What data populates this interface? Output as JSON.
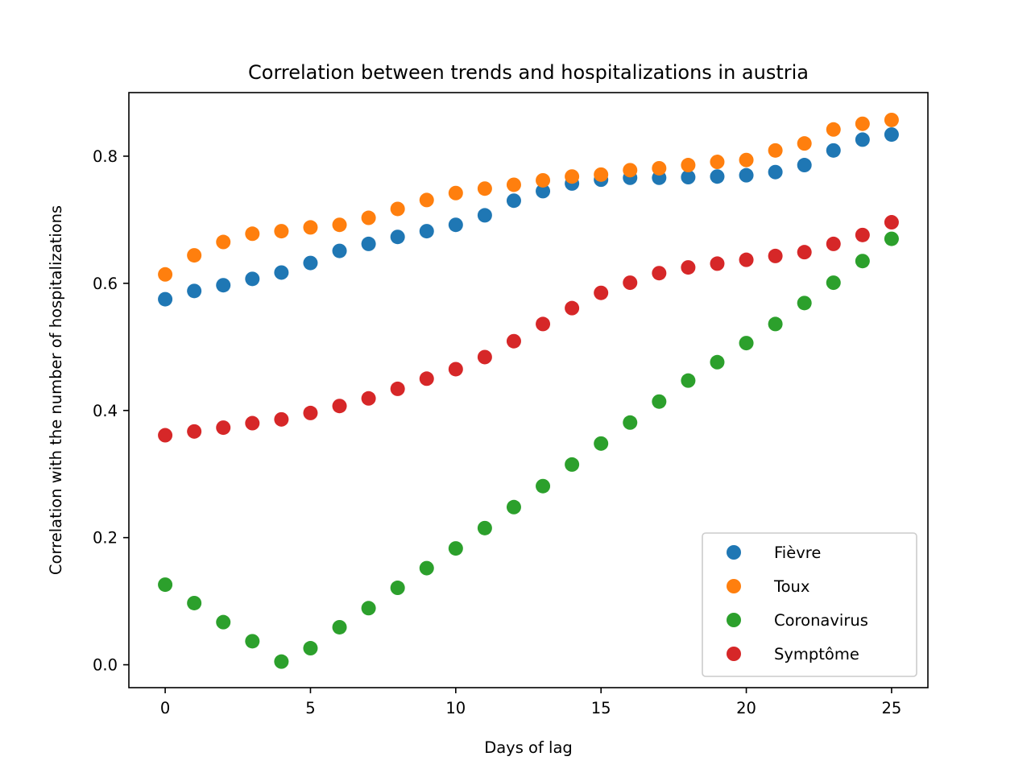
{
  "chart_data": {
    "type": "scatter",
    "title": "Correlation between trends and hospitalizations in austria",
    "xlabel": "Days of lag",
    "ylabel": "Correlation with the number of hospitalizations",
    "xlim": [
      -1.25,
      26.25
    ],
    "ylim": [
      -0.036,
      0.9
    ],
    "xticks": [
      0,
      5,
      10,
      15,
      20,
      25
    ],
    "xtick_labels": [
      "0",
      "5",
      "10",
      "15",
      "20",
      "25"
    ],
    "yticks": [
      0.0,
      0.2,
      0.4,
      0.6,
      0.8
    ],
    "ytick_labels": [
      "0.0",
      "0.2",
      "0.4",
      "0.6",
      "0.8"
    ],
    "grid": false,
    "legend_position": "lower-right",
    "x": [
      0,
      1,
      2,
      3,
      4,
      5,
      6,
      7,
      8,
      9,
      10,
      11,
      12,
      13,
      14,
      15,
      16,
      17,
      18,
      19,
      20,
      21,
      22,
      23,
      24,
      25
    ],
    "series": [
      {
        "name": "Fièvre",
        "color": "#1f77b4",
        "values": [
          0.575,
          0.588,
          0.597,
          0.607,
          0.617,
          0.632,
          0.651,
          0.662,
          0.673,
          0.682,
          0.692,
          0.707,
          0.73,
          0.745,
          0.757,
          0.763,
          0.766,
          0.766,
          0.767,
          0.768,
          0.77,
          0.775,
          0.786,
          0.809,
          0.826,
          0.834
        ]
      },
      {
        "name": "Toux",
        "color": "#ff7f0e",
        "values": [
          0.614,
          0.644,
          0.665,
          0.678,
          0.682,
          0.688,
          0.692,
          0.703,
          0.717,
          0.731,
          0.742,
          0.749,
          0.755,
          0.762,
          0.768,
          0.771,
          0.778,
          0.781,
          0.786,
          0.791,
          0.794,
          0.809,
          0.82,
          0.842,
          0.851,
          0.857
        ]
      },
      {
        "name": "Coronavirus",
        "color": "#2ca02c",
        "values": [
          0.126,
          0.097,
          0.067,
          0.037,
          0.005,
          0.026,
          0.059,
          0.089,
          0.121,
          0.152,
          0.183,
          0.215,
          0.248,
          0.281,
          0.315,
          0.348,
          0.381,
          0.414,
          0.447,
          0.476,
          0.506,
          0.536,
          0.569,
          0.601,
          0.635,
          0.67
        ]
      },
      {
        "name": "Symptôme",
        "color": "#d62728",
        "values": [
          0.361,
          0.367,
          0.373,
          0.38,
          0.386,
          0.396,
          0.407,
          0.419,
          0.434,
          0.45,
          0.465,
          0.484,
          0.509,
          0.536,
          0.561,
          0.585,
          0.601,
          0.616,
          0.625,
          0.631,
          0.637,
          0.643,
          0.649,
          0.662,
          0.676,
          0.696
        ]
      }
    ]
  }
}
